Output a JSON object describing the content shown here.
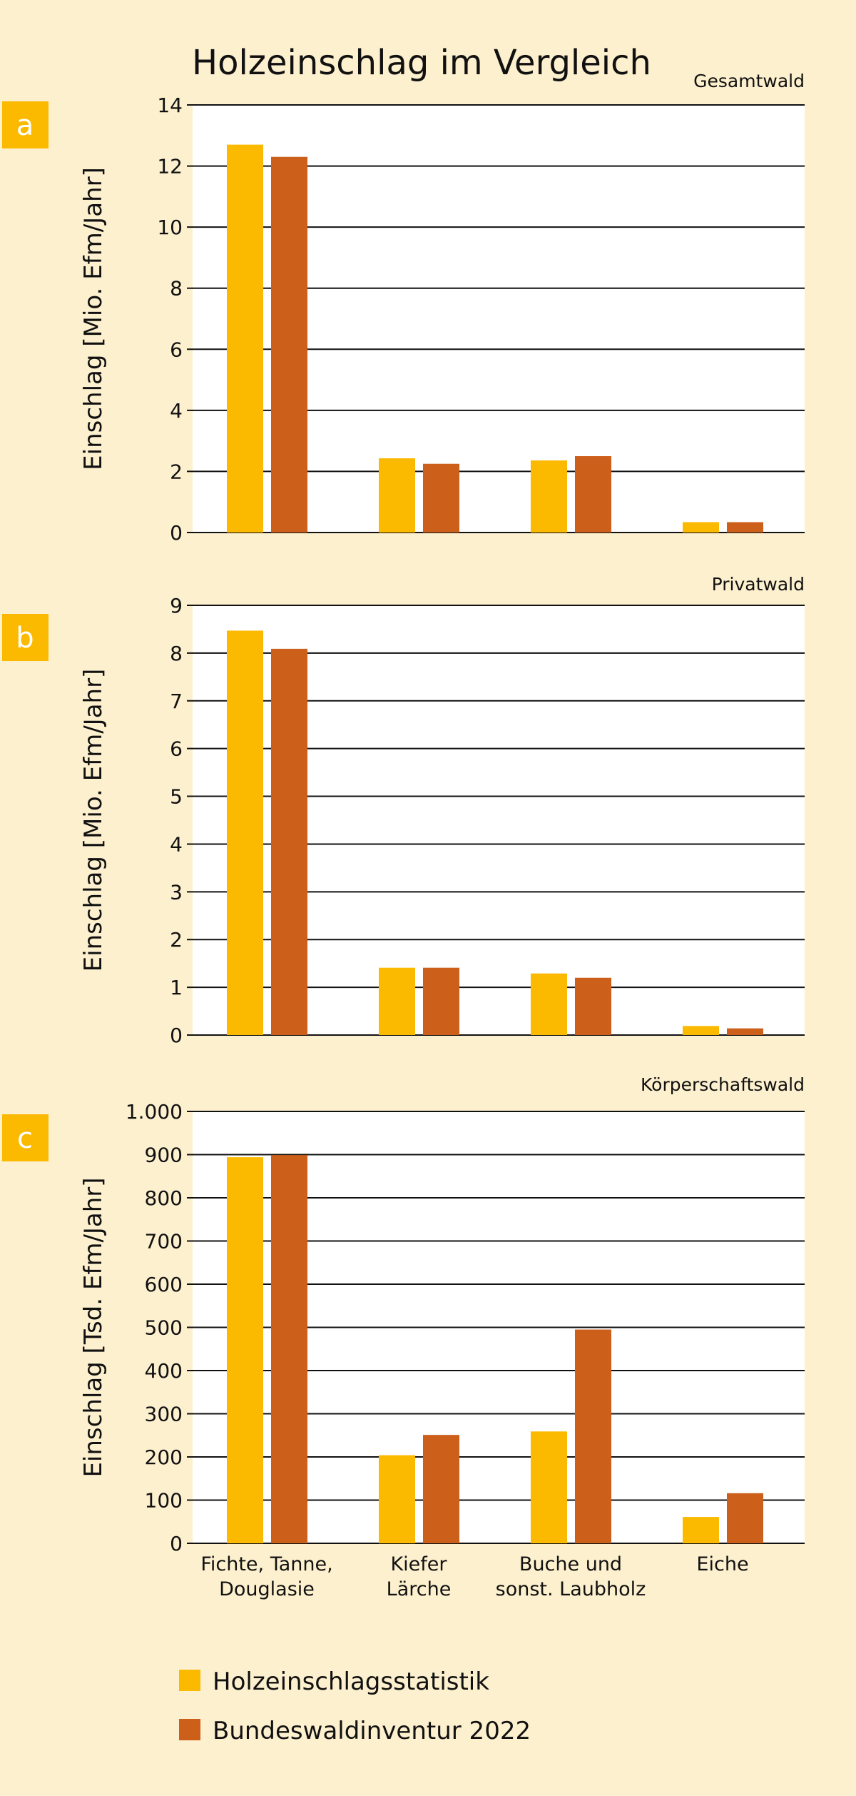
{
  "title": "Holzeinschlag im Vergleich",
  "colors": {
    "background": "#FDF0CE",
    "holzeinschlagsstatistik": "#FBB900",
    "bundeswaldinventur": "#CC5F1A",
    "badge": "#FBB900"
  },
  "legend": [
    "Holzeinschlagsstatistik",
    "Bundeswaldinventur 2022"
  ],
  "categories": [
    [
      "Fichte, Tanne,",
      "Douglasie"
    ],
    [
      "Kiefer",
      "Lärche"
    ],
    [
      "Buche und",
      "sonst. Laubholz"
    ],
    [
      "Eiche"
    ]
  ],
  "chart_data": [
    {
      "type": "bar",
      "panel": "a",
      "subtitle": "Gesamtwald",
      "ylabel": "Einschlag [Mio. Efm/Jahr]",
      "ylim": [
        0,
        14
      ],
      "yticks": [
        0,
        2,
        4,
        6,
        8,
        10,
        12,
        14
      ],
      "ytick_labels": [
        "0",
        "2",
        "4",
        "6",
        "8",
        "10",
        "12",
        "14"
      ],
      "categories": [
        "Fichte, Tanne, Douglasie",
        "Kiefer Lärche",
        "Buche und sonst. Laubholz",
        "Eiche"
      ],
      "series": [
        {
          "name": "Holzeinschlagsstatistik",
          "values": [
            12.7,
            2.43,
            2.36,
            0.34
          ]
        },
        {
          "name": "Bundeswaldinventur 2022",
          "values": [
            12.3,
            2.25,
            2.5,
            0.34
          ]
        }
      ]
    },
    {
      "type": "bar",
      "panel": "b",
      "subtitle": "Privatwald",
      "ylabel": "Einschlag [Mio. Efm/Jahr]",
      "ylim": [
        0,
        9
      ],
      "yticks": [
        0,
        1,
        2,
        3,
        4,
        5,
        6,
        7,
        8,
        9
      ],
      "ytick_labels": [
        "0",
        "1",
        "2",
        "3",
        "4",
        "5",
        "6",
        "7",
        "8",
        "9"
      ],
      "categories": [
        "Fichte, Tanne, Douglasie",
        "Kiefer Lärche",
        "Buche und sonst. Laubholz",
        "Eiche"
      ],
      "series": [
        {
          "name": "Holzeinschlagsstatistik",
          "values": [
            8.47,
            1.41,
            1.29,
            0.19
          ]
        },
        {
          "name": "Bundeswaldinventur 2022",
          "values": [
            8.09,
            1.41,
            1.2,
            0.14
          ]
        }
      ]
    },
    {
      "type": "bar",
      "panel": "c",
      "subtitle": "Körperschaftswald",
      "ylabel": "Einschlag [Tsd. Efm/Jahr]",
      "ylim": [
        0,
        1000
      ],
      "yticks": [
        0,
        100,
        200,
        300,
        400,
        500,
        600,
        700,
        800,
        900,
        1000
      ],
      "ytick_labels": [
        "0",
        "100",
        "200",
        "300",
        "400",
        "500",
        "600",
        "700",
        "800",
        "900",
        "1.000"
      ],
      "categories": [
        "Fichte, Tanne, Douglasie",
        "Kiefer Lärche",
        "Buche und sonst. Laubholz",
        "Eiche"
      ],
      "series": [
        {
          "name": "Holzeinschlagsstatistik",
          "values": [
            894,
            204,
            259,
            61
          ]
        },
        {
          "name": "Bundeswaldinventur 2022",
          "values": [
            899,
            251,
            495,
            116
          ]
        }
      ]
    }
  ]
}
